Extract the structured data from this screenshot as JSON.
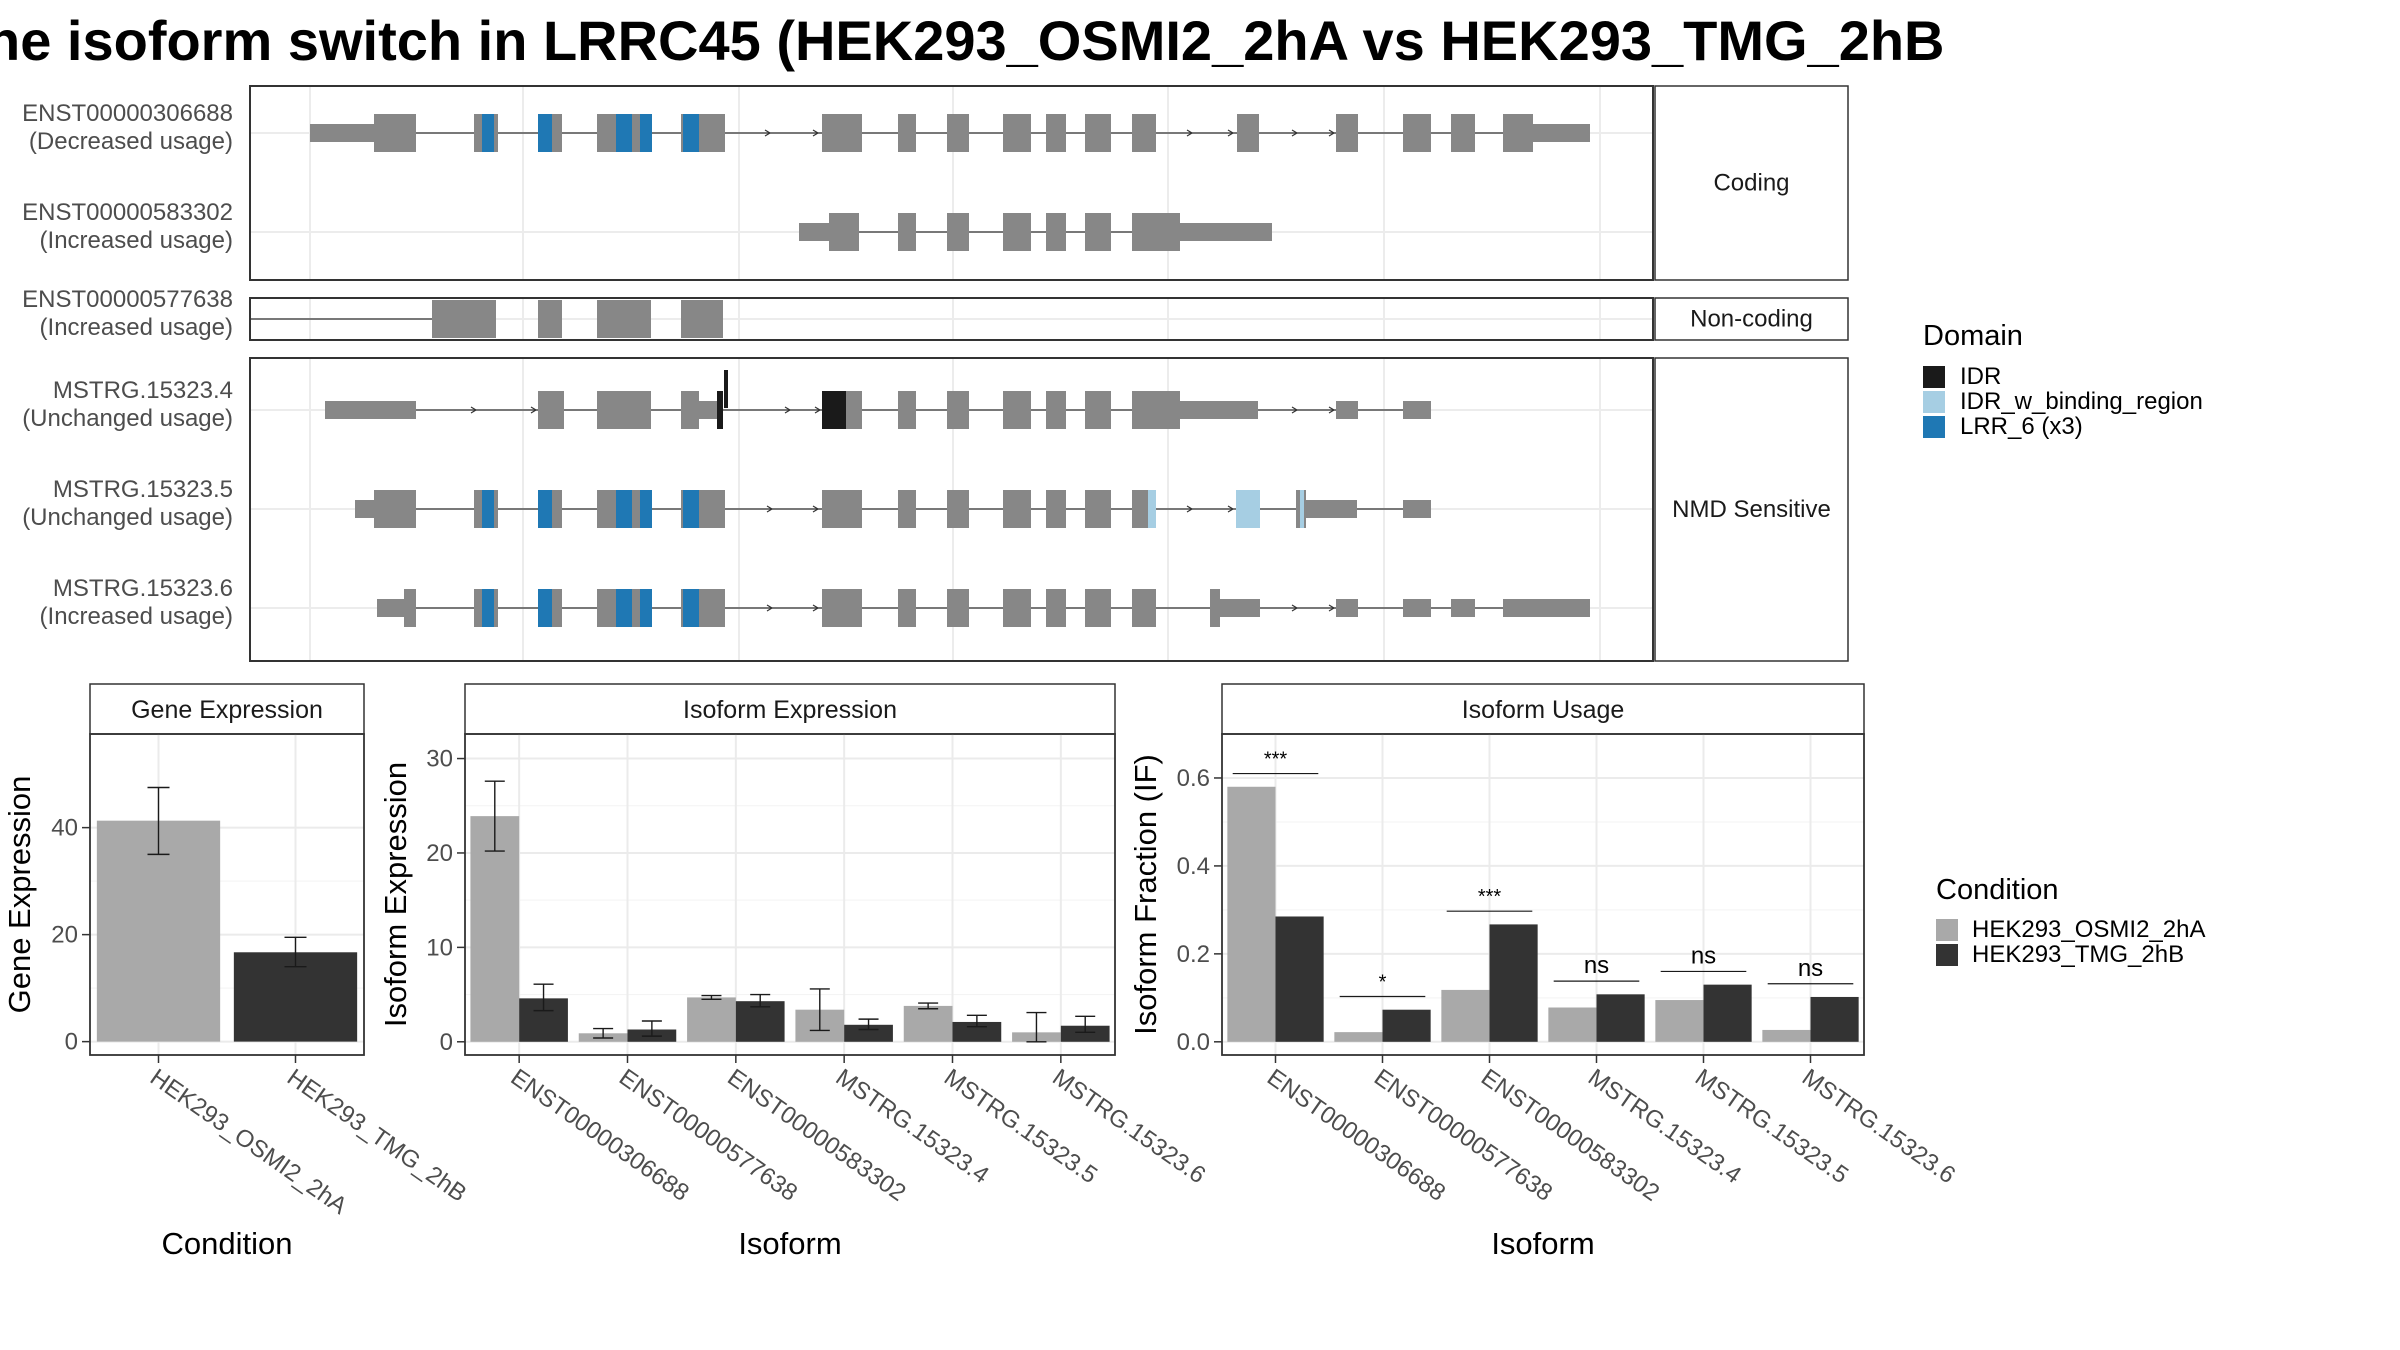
{
  "title": "he isoform switch in LRRC45 (HEK293_OSMI2_2hA vs HEK293_TMG_2hB",
  "colors": {
    "exon": "#878787",
    "IDR": "#1a1a1a",
    "IDR_w_binding_region": "#a6cee3",
    "LRR_6 (x3)": "#1f78b4",
    "cond_a": "#a9a9a9",
    "cond_b": "#333333"
  },
  "transcript_panel": {
    "categories": [
      {
        "label": "Coding",
        "transcripts": [
          "ENST00000306688",
          "ENST00000583302"
        ]
      },
      {
        "label": "Non-coding",
        "transcripts": [
          "ENST00000577638"
        ]
      },
      {
        "label": "NMD Sensitive",
        "transcripts": [
          "MSTRG.15323.4",
          "MSTRG.15323.5",
          "MSTRG.15323.6"
        ]
      }
    ],
    "transcripts": [
      {
        "id": "ENST00000306688",
        "usage": "(Decreased usage)"
      },
      {
        "id": "ENST00000583302",
        "usage": "(Increased usage)"
      },
      {
        "id": "ENST00000577638",
        "usage": "(Increased usage)"
      },
      {
        "id": "MSTRG.15323.4",
        "usage": "(Unchanged usage)"
      },
      {
        "id": "MSTRG.15323.5",
        "usage": "(Unchanged usage)"
      },
      {
        "id": "MSTRG.15323.6",
        "usage": "(Increased usage)"
      }
    ],
    "domain_legend": {
      "title": "Domain",
      "items": [
        {
          "label": "IDR",
          "color": "#1a1a1a"
        },
        {
          "label": "IDR_w_binding_region",
          "color": "#a6cee3"
        },
        {
          "label": "LRR_6 (x3)",
          "color": "#1f78b4"
        }
      ]
    }
  },
  "chart_data": [
    {
      "type": "bar",
      "title": "Gene Expression",
      "xlabel": "Condition",
      "ylabel": "Gene Expression",
      "categories": [
        "HEK293_OSMI2_2hA",
        "HEK293_TMG_2hB"
      ],
      "values": [
        41.3,
        16.7
      ],
      "error": [
        [
          35.0,
          47.5
        ],
        [
          14.0,
          19.5
        ]
      ],
      "ylim": [
        -2.5,
        57.5
      ],
      "yticks": [
        0,
        20,
        40
      ]
    },
    {
      "type": "bar",
      "title": "Isoform Expression",
      "xlabel": "Isoform",
      "ylabel": "Isoform Expression",
      "categories": [
        "ENST00000306688",
        "ENST00000577638",
        "ENST00000583302",
        "MSTRG.15323.4",
        "MSTRG.15323.5",
        "MSTRG.15323.6"
      ],
      "series": [
        {
          "name": "HEK293_OSMI2_2hA",
          "values": [
            23.9,
            0.9,
            4.7,
            3.4,
            3.8,
            1.0
          ],
          "error": [
            [
              20.2,
              27.6
            ],
            [
              0.4,
              1.4
            ],
            [
              4.5,
              4.9
            ],
            [
              1.2,
              5.6
            ],
            [
              3.5,
              4.1
            ],
            [
              0.0,
              3.1
            ]
          ]
        },
        {
          "name": "HEK293_TMG_2hB",
          "values": [
            4.6,
            1.3,
            4.3,
            1.8,
            2.1,
            1.7
          ],
          "error": [
            [
              3.3,
              6.1
            ],
            [
              0.6,
              2.2
            ],
            [
              3.7,
              5.0
            ],
            [
              1.3,
              2.4
            ],
            [
              1.6,
              2.8
            ],
            [
              1.0,
              2.7
            ]
          ]
        }
      ],
      "ylim": [
        -1.4,
        32.6
      ],
      "yticks": [
        0,
        10,
        20,
        30
      ]
    },
    {
      "type": "bar",
      "title": "Isoform Usage",
      "xlabel": "Isoform",
      "ylabel": "Isoform Fraction (IF)",
      "categories": [
        "ENST00000306688",
        "ENST00000577638",
        "ENST00000583302",
        "MSTRG.15323.4",
        "MSTRG.15323.5",
        "MSTRG.15323.6"
      ],
      "series": [
        {
          "name": "HEK293_OSMI2_2hA",
          "values": [
            0.58,
            0.022,
            0.118,
            0.078,
            0.095,
            0.027
          ]
        },
        {
          "name": "HEK293_TMG_2hB",
          "values": [
            0.285,
            0.073,
            0.267,
            0.108,
            0.13,
            0.102
          ]
        }
      ],
      "significance": [
        "***",
        "*",
        "***",
        "ns",
        "ns",
        "ns"
      ],
      "significance_y": [
        0.61,
        0.103,
        0.297,
        0.138,
        0.16,
        0.132
      ],
      "ylim": [
        -0.03,
        0.7
      ],
      "yticks": [
        0.0,
        0.2,
        0.4,
        0.6
      ],
      "ytick_labels": [
        "0.0",
        "0.2",
        "0.4",
        "0.6"
      ],
      "legend": {
        "title": "Condition",
        "items": [
          "HEK293_OSMI2_2hA",
          "HEK293_TMG_2hB"
        ]
      }
    }
  ]
}
